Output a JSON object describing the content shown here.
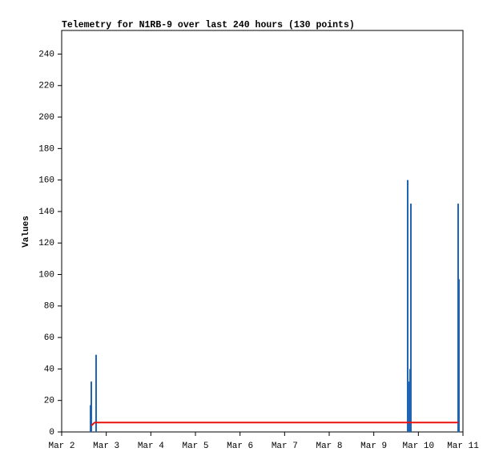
{
  "chart_data": {
    "type": "bar",
    "title": "Telemetry for N1RB-9 over last 240 hours (130 points)",
    "y_label": "Values",
    "xlim": [
      2,
      11
    ],
    "xticks": [
      {
        "value": 2,
        "label": "Mar 2"
      },
      {
        "value": 3,
        "label": "Mar 3"
      },
      {
        "value": 4,
        "label": "Mar 4"
      },
      {
        "value": 5,
        "label": "Mar 5"
      },
      {
        "value": 6,
        "label": "Mar 6"
      },
      {
        "value": 7,
        "label": "Mar 7"
      },
      {
        "value": 8,
        "label": "Mar 8"
      },
      {
        "value": 9,
        "label": "Mar 9"
      },
      {
        "value": 10,
        "label": "Mar 10"
      },
      {
        "value": 11,
        "label": "Mar 11"
      }
    ],
    "ylim": [
      0,
      255
    ],
    "yticks": [
      0,
      20,
      40,
      60,
      80,
      100,
      120,
      140,
      160,
      180,
      200,
      220,
      240
    ],
    "series": [
      {
        "type": "bar",
        "color": "#1f63b5",
        "x": [
          2.647,
          2.665,
          2.772,
          9.76,
          9.796,
          9.814,
          9.832,
          10.892,
          10.91
        ],
        "values": [
          17,
          32,
          49,
          160,
          32,
          40,
          145,
          145,
          97
        ]
      },
      {
        "type": "line",
        "color": "#e8120c",
        "x": [
          2.665,
          2.74,
          10.9
        ],
        "values": [
          4,
          6,
          6
        ]
      }
    ]
  }
}
